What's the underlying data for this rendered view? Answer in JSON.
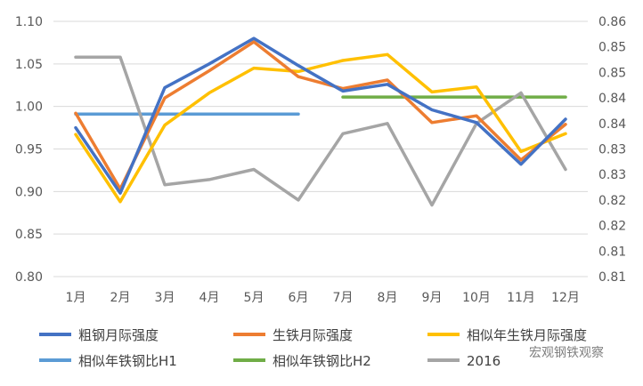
{
  "chart_data": {
    "type": "line",
    "title": "",
    "xlabel": "",
    "ylabel": "",
    "categories": [
      "1月",
      "2月",
      "3月",
      "4月",
      "5月",
      "6月",
      "7月",
      "8月",
      "9月",
      "10月",
      "11月",
      "12月"
    ],
    "y_left": {
      "min": 0.8,
      "max": 1.1,
      "step": 0.05,
      "ticks": [
        "0.80",
        "0.85",
        "0.90",
        "0.95",
        "1.00",
        "1.05",
        "1.10"
      ]
    },
    "y_right": {
      "ticks": [
        "0.81",
        "0.81",
        "0.82",
        "0.82",
        "0.83",
        "0.83",
        "0.84",
        "0.84",
        "0.85",
        "0.85",
        "0.86"
      ]
    },
    "grid": true,
    "legend_position": "bottom",
    "series": [
      {
        "name": "粗钢月际强度",
        "color": "#4472C4",
        "axis": "left",
        "values": [
          0.975,
          0.898,
          1.022,
          1.05,
          1.08,
          1.048,
          1.018,
          1.026,
          0.996,
          0.981,
          0.932,
          0.985
        ]
      },
      {
        "name": "生铁月际强度",
        "color": "#ED7D31",
        "axis": "left",
        "values": [
          0.992,
          0.903,
          1.01,
          1.042,
          1.076,
          1.035,
          1.021,
          1.031,
          0.981,
          0.989,
          0.937,
          0.979
        ]
      },
      {
        "name": "相似年生铁月际强度",
        "color": "#FFC000",
        "axis": "left",
        "values": [
          0.967,
          0.888,
          0.978,
          1.016,
          1.045,
          1.041,
          1.054,
          1.061,
          1.017,
          1.023,
          0.947,
          0.968
        ]
      },
      {
        "name": "相似年铁钢比H1",
        "color": "#5B9BD5",
        "axis": "left",
        "values": [
          0.991,
          0.991,
          0.991,
          0.991,
          0.991,
          0.991,
          null,
          null,
          null,
          null,
          null,
          null
        ]
      },
      {
        "name": "相似年铁钢比H2",
        "color": "#70AD47",
        "axis": "left",
        "values": [
          null,
          null,
          null,
          null,
          null,
          null,
          1.011,
          1.011,
          1.011,
          1.011,
          1.011,
          1.011
        ]
      },
      {
        "name": "2016",
        "color": "#A5A5A5",
        "axis": "right",
        "values": [
          0.853,
          0.853,
          0.828,
          0.829,
          0.831,
          0.825,
          0.838,
          0.84,
          0.824,
          0.84,
          0.846,
          0.831
        ]
      }
    ],
    "watermark": "宏观钢铁观察"
  }
}
